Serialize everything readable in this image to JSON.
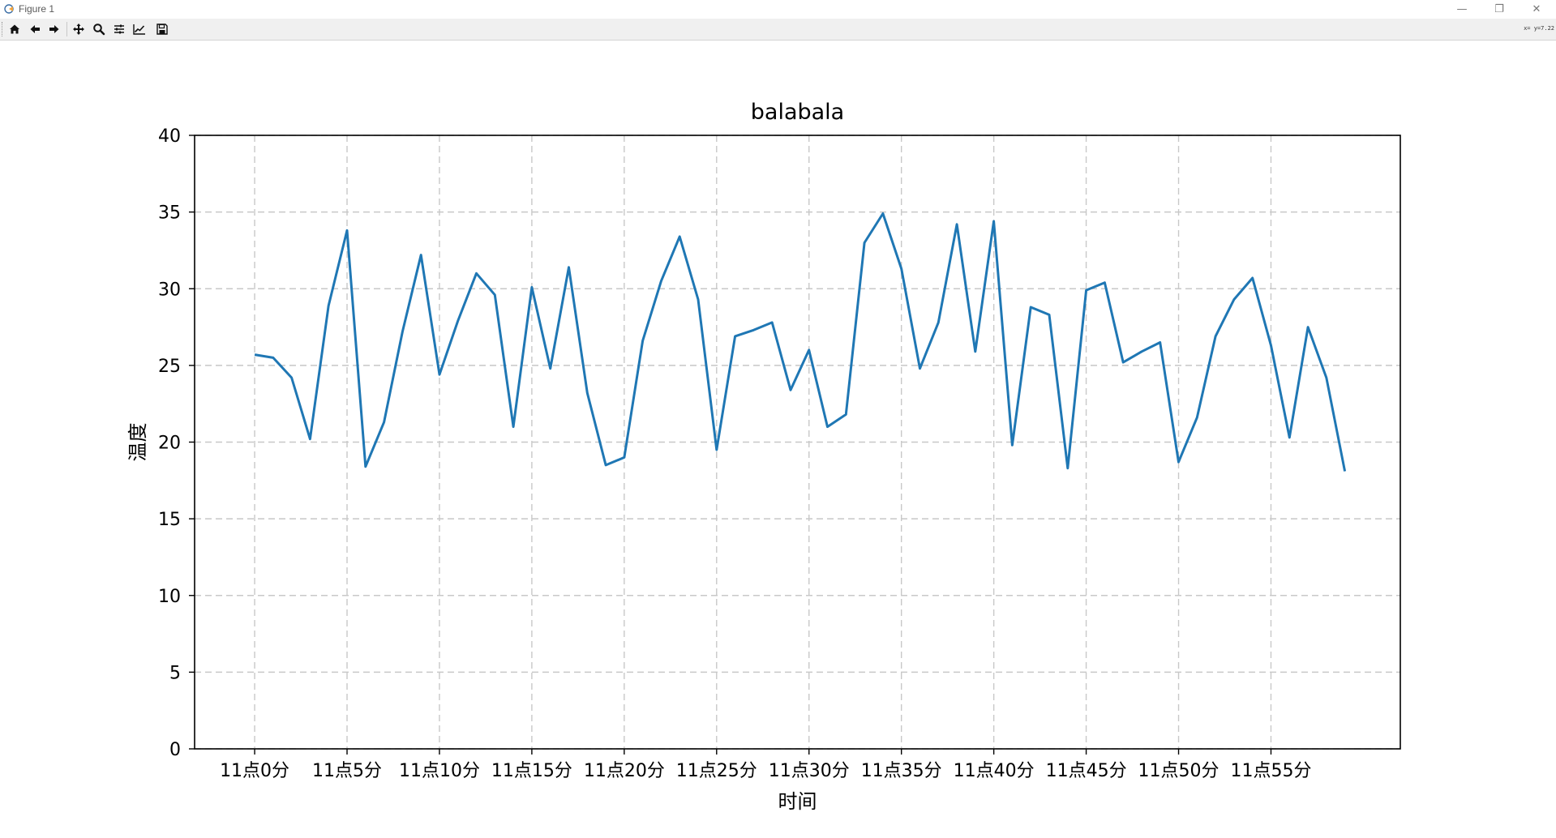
{
  "window": {
    "title": "Figure 1",
    "minimize_glyph": "—",
    "restore_glyph": "❐",
    "close_glyph": "✕"
  },
  "toolbar": {
    "buttons": [
      {
        "name": "home-icon"
      },
      {
        "name": "back-icon"
      },
      {
        "name": "forward-icon"
      },
      {
        "name": "pan-icon"
      },
      {
        "name": "zoom-icon"
      },
      {
        "name": "configure-subplots-icon"
      },
      {
        "name": "edit-axis-icon"
      },
      {
        "name": "save-icon"
      }
    ],
    "coord_readout": "x= y=7.22"
  },
  "chart_data": {
    "type": "line",
    "title": "balabala",
    "xlabel": "时间",
    "ylabel": "温度",
    "ylim": [
      0,
      40
    ],
    "yticks": [
      0,
      5,
      10,
      15,
      20,
      25,
      30,
      35,
      40
    ],
    "xlim": [
      -3.25,
      62
    ],
    "xticks": [
      0,
      5,
      10,
      15,
      20,
      25,
      30,
      35,
      40,
      45,
      50,
      55
    ],
    "xticklabels": [
      "11点0分",
      "11点5分",
      "11点10分",
      "11点15分",
      "11点20分",
      "11点25分",
      "11点30分",
      "11点35分",
      "11点40分",
      "11点45分",
      "11点50分",
      "11点55分"
    ],
    "grid": true,
    "line_color": "#1f77b4",
    "x": [
      0,
      1,
      2,
      3,
      4,
      5,
      6,
      7,
      8,
      9,
      10,
      11,
      12,
      13,
      14,
      15,
      16,
      17,
      18,
      19,
      20,
      21,
      22,
      23,
      24,
      25,
      26,
      27,
      28,
      29,
      30,
      31,
      32,
      33,
      34,
      35,
      36,
      37,
      38,
      39,
      40,
      41,
      42,
      43,
      44,
      45,
      46,
      47,
      48,
      49,
      50,
      51,
      52,
      53,
      54,
      55,
      56,
      57,
      58,
      59
    ],
    "values": [
      25.7,
      25.5,
      24.2,
      20.2,
      28.9,
      33.8,
      18.4,
      21.3,
      27.2,
      32.2,
      24.4,
      27.9,
      31.0,
      29.6,
      21.0,
      30.1,
      24.8,
      31.4,
      23.2,
      18.5,
      19.0,
      26.6,
      30.5,
      33.4,
      29.3,
      19.5,
      26.9,
      27.3,
      27.8,
      23.4,
      26.0,
      21.0,
      21.8,
      33.0,
      34.9,
      31.3,
      24.8,
      27.8,
      34.2,
      25.9,
      34.4,
      19.8,
      28.8,
      28.3,
      18.3,
      29.9,
      30.4,
      25.2,
      25.9,
      26.5,
      18.7,
      21.6,
      26.9,
      29.3,
      30.7,
      26.3,
      20.3,
      27.5,
      24.2,
      18.1
    ]
  }
}
